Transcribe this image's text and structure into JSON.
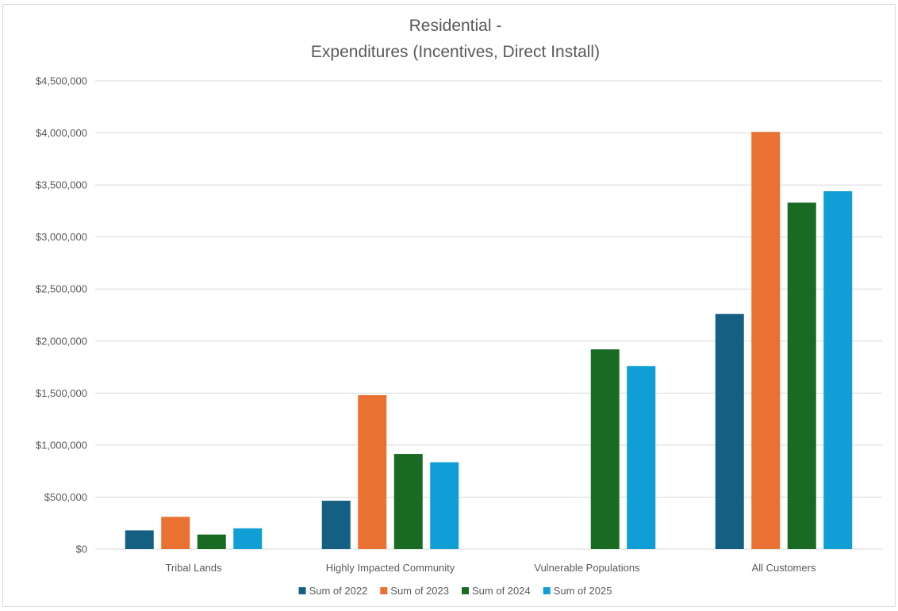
{
  "chart_data": {
    "type": "bar",
    "title": [
      "Residential -",
      "Expenditures (Incentives, Direct Install)"
    ],
    "categories": [
      "Tribal Lands",
      "Highly Impacted Community",
      "Vulnerable Populations",
      "All Customers"
    ],
    "series": [
      {
        "name": "Sum of 2022",
        "color": "#156082",
        "values": [
          180000,
          465000,
          null,
          2260000
        ]
      },
      {
        "name": "Sum of 2023",
        "color": "#E97132",
        "values": [
          310000,
          1480000,
          null,
          4010000
        ]
      },
      {
        "name": "Sum of 2024",
        "color": "#196B24",
        "values": [
          140000,
          915000,
          1920000,
          3330000
        ]
      },
      {
        "name": "Sum of 2025",
        "color": "#0F9ED5",
        "values": [
          200000,
          835000,
          1760000,
          3440000
        ]
      }
    ],
    "y_ticks": [
      "$0",
      "$500,000",
      "$1,000,000",
      "$1,500,000",
      "$2,000,000",
      "$2,500,000",
      "$3,000,000",
      "$3,500,000",
      "$4,000,000",
      "$4,500,000"
    ],
    "ylim": [
      0,
      4500000
    ],
    "grid": true,
    "legend": "bottom",
    "gridline_color": "#d9d9d9",
    "text_color": "#595959"
  }
}
